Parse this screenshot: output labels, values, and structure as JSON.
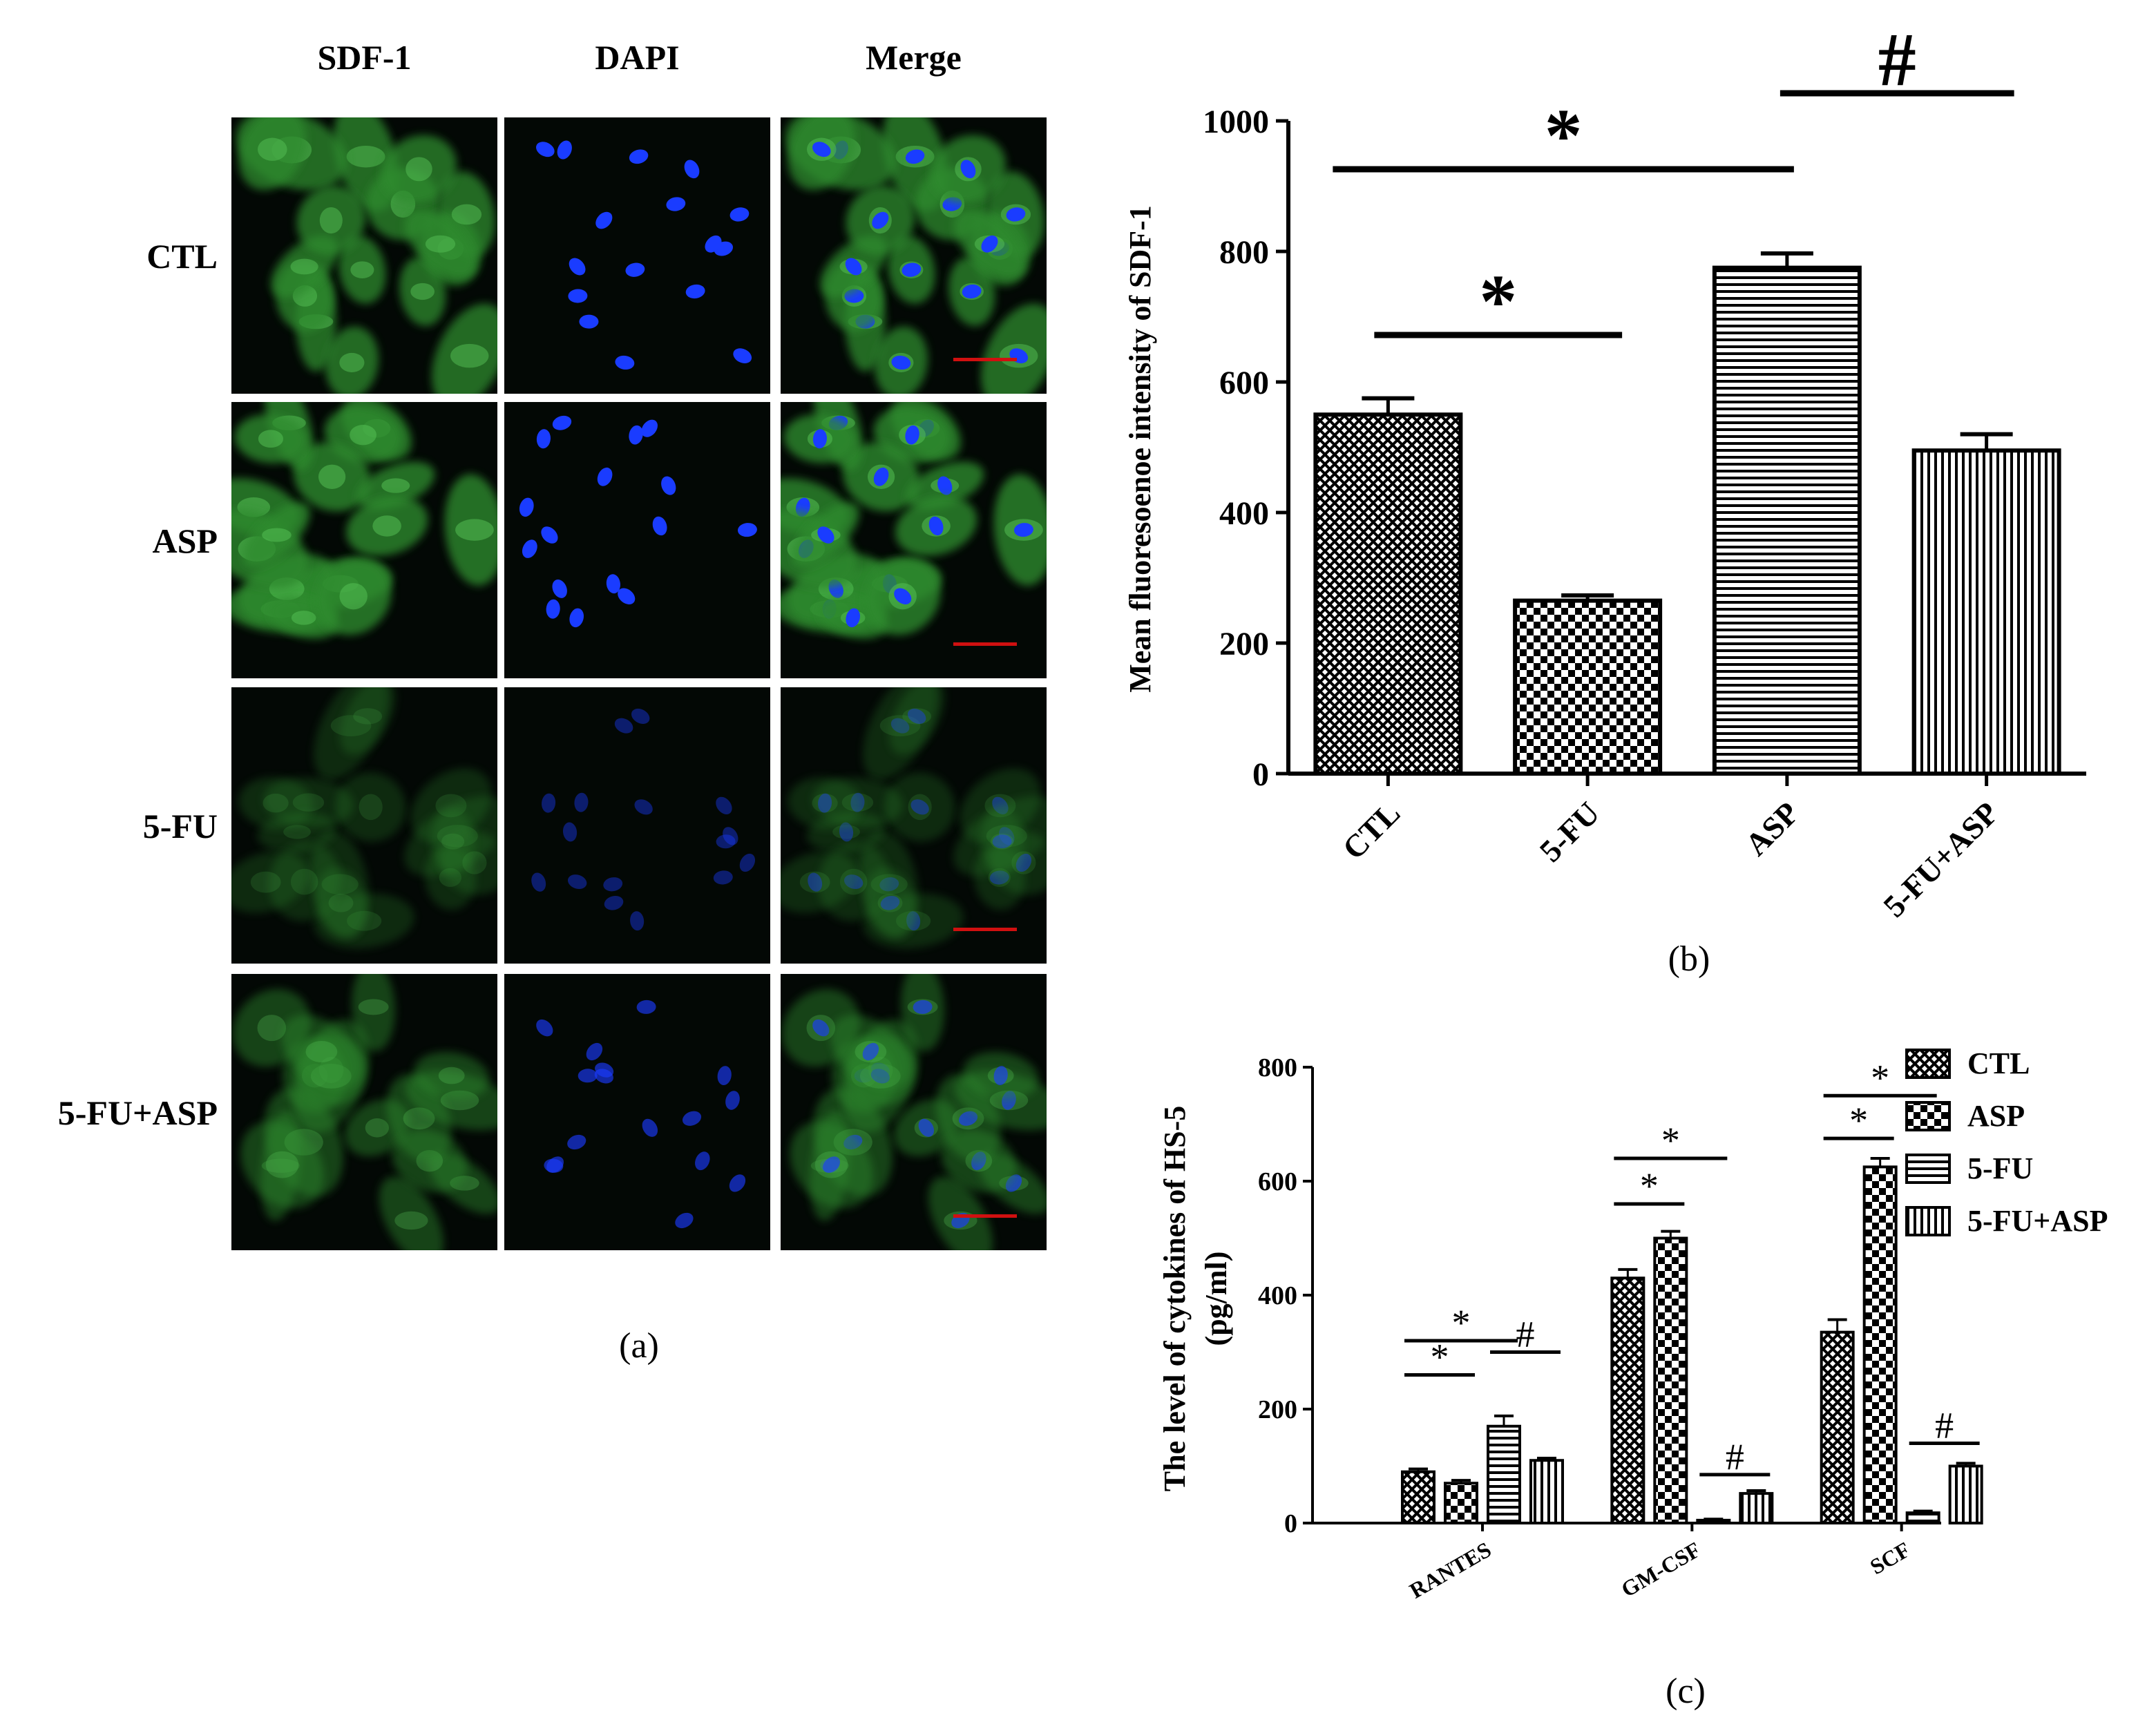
{
  "panel_a": {
    "column_headers": [
      "SDF-1",
      "DAPI",
      "Merge"
    ],
    "row_labels": [
      "CTL",
      "ASP",
      "5-FU",
      "5-FU+ASP"
    ],
    "caption": "(a)",
    "colors": {
      "green_cell": "#2e8b2e",
      "blue_nucleus": "#1a3cff",
      "background": "#030805",
      "scale_bar": "#d01010"
    },
    "brightness": [
      1.0,
      1.05,
      0.35,
      0.6
    ]
  },
  "panel_b": {
    "caption": "(b)",
    "significance": [
      {
        "symbol": "*",
        "from": "CTL",
        "to": "ASP"
      },
      {
        "symbol": "*",
        "from": "CTL",
        "to": "5-FU"
      },
      {
        "symbol": "#",
        "from": "ASP",
        "to": "5-FU+ASP"
      }
    ]
  },
  "panel_c": {
    "caption": "(c)",
    "significance": [
      {
        "symbol": "*",
        "group": "RANTES",
        "from": "CTL",
        "to": "ASP"
      },
      {
        "symbol": "*",
        "group": "RANTES",
        "from": "CTL",
        "to": "5-FU"
      },
      {
        "symbol": "#",
        "group": "RANTES",
        "from": "5-FU",
        "to": "5-FU+ASP"
      },
      {
        "symbol": "*",
        "group": "GM-CSF",
        "from": "CTL",
        "to": "ASP"
      },
      {
        "symbol": "*",
        "group": "GM-CSF",
        "from": "CTL",
        "to": "ASP"
      },
      {
        "symbol": "#",
        "group": "GM-CSF",
        "from": "5-FU",
        "to": "5-FU+ASP"
      },
      {
        "symbol": "*",
        "group": "SCF",
        "from": "CTL",
        "to": "ASP"
      },
      {
        "symbol": "*",
        "group": "SCF",
        "from": "CTL",
        "to": "ASP"
      },
      {
        "symbol": "#",
        "group": "SCF",
        "from": "5-FU",
        "to": "5-FU+ASP"
      }
    ]
  },
  "chart_data": [
    {
      "type": "bar",
      "title": "",
      "xlabel": "",
      "ylabel": "Mean fluoresoenoe intensity of SDF-1",
      "categories": [
        "CTL",
        "5-FU",
        "ASP",
        "5-FU+ASP"
      ],
      "values": [
        550,
        265,
        775,
        495
      ],
      "errors": [
        25,
        8,
        22,
        25
      ],
      "ylim": [
        0,
        1000
      ],
      "yticks": [
        0,
        200,
        400,
        600,
        800,
        1000
      ],
      "patterns": [
        "crosshatch",
        "checker",
        "horizontal",
        "vertical"
      ],
      "grid": false,
      "legend": "none"
    },
    {
      "type": "bar",
      "title": "",
      "xlabel": "",
      "ylabel": "The level of cytokines of HS-5 (pg/ml)",
      "categories": [
        "RANTES",
        "GM-CSF",
        "SCF"
      ],
      "series": [
        {
          "name": "CTL",
          "values": [
            90,
            430,
            335
          ],
          "errors": [
            5,
            15,
            22
          ],
          "pattern": "crosshatch"
        },
        {
          "name": "ASP",
          "values": [
            70,
            500,
            625
          ],
          "errors": [
            5,
            12,
            15
          ],
          "pattern": "checker"
        },
        {
          "name": "5-FU",
          "values": [
            170,
            5,
            18
          ],
          "errors": [
            18,
            2,
            3
          ],
          "pattern": "horizontal"
        },
        {
          "name": "5-FU+ASP",
          "values": [
            110,
            52,
            100
          ],
          "errors": [
            4,
            5,
            5
          ],
          "pattern": "vertical"
        }
      ],
      "ylim": [
        0,
        800
      ],
      "yticks": [
        0,
        200,
        400,
        600,
        800
      ],
      "grid": false,
      "legend": "top-right"
    }
  ]
}
